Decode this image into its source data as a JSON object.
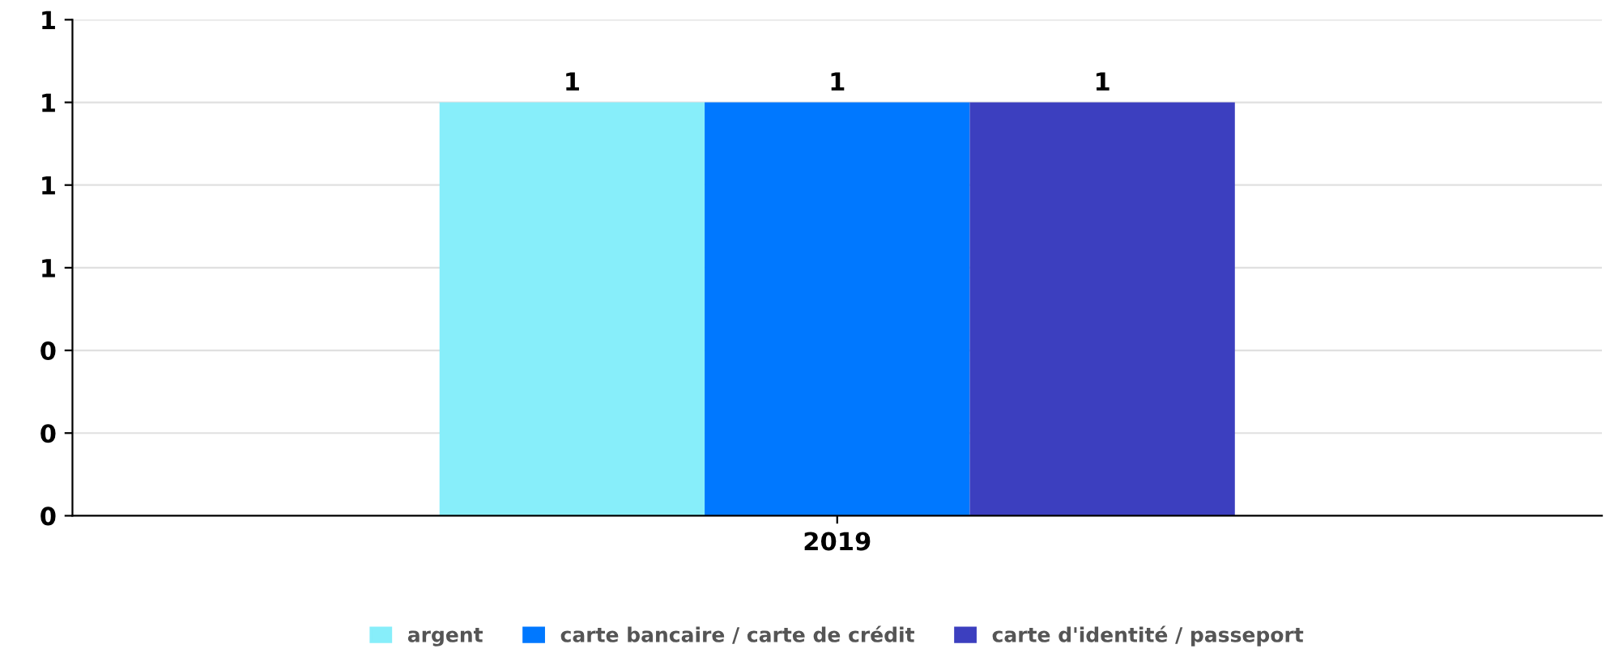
{
  "chart_data": {
    "type": "bar",
    "categories": [
      "2019"
    ],
    "series": [
      {
        "name": "argent",
        "color": "#87eefa",
        "values": [
          1
        ]
      },
      {
        "name": "carte bancaire / carte de crédit",
        "color": "#0078ff",
        "values": [
          1
        ]
      },
      {
        "name": "carte d'identité / passeport",
        "color": "#3c3fbf",
        "values": [
          1
        ]
      }
    ],
    "ylim": [
      0,
      1.2
    ],
    "yticks": [
      {
        "value": 0,
        "label": "0"
      },
      {
        "value": 0.2,
        "label": "0"
      },
      {
        "value": 0.4,
        "label": "0"
      },
      {
        "value": 0.6,
        "label": "1"
      },
      {
        "value": 0.8,
        "label": "1"
      },
      {
        "value": 1.0,
        "label": "1"
      },
      {
        "value": 1.2,
        "label": "1"
      }
    ],
    "data_labels": true,
    "grid": "y",
    "legend": "bottom"
  }
}
